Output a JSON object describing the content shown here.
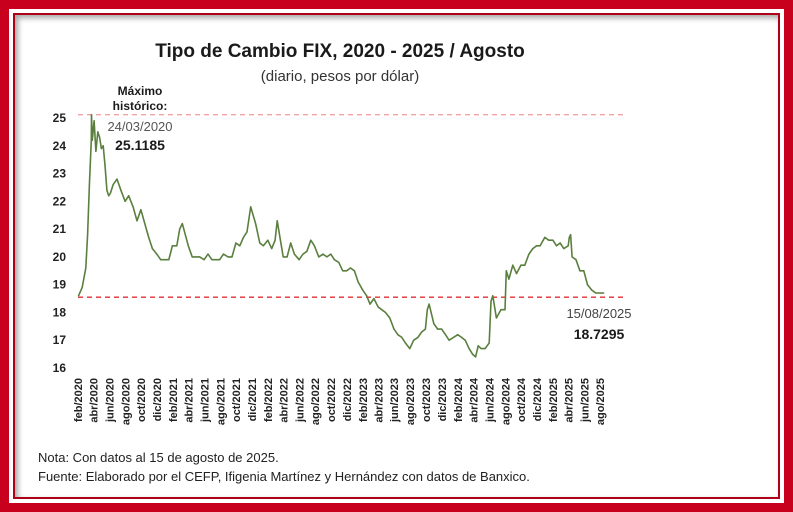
{
  "chart_data": {
    "type": "line",
    "title": "Tipo de Cambio FIX, 2020 - 2025 / Agosto",
    "subtitle": "(diario, pesos por dólar)",
    "ylim": [
      16,
      25
    ],
    "yticks": [
      16,
      17,
      18,
      19,
      20,
      21,
      22,
      23,
      24,
      25
    ],
    "xlim": [
      "2020-02-01",
      "2025-08-31"
    ],
    "xticks": [
      "feb/2020",
      "abr/2020",
      "jun/2020",
      "ago/2020",
      "oct/2020",
      "dic/2020",
      "feb/2021",
      "abr/2021",
      "jun/2021",
      "ago/2021",
      "oct/2021",
      "dic/2021",
      "feb/2022",
      "abr/2022",
      "jun/2022",
      "ago/2022",
      "oct/2022",
      "dic/2022",
      "feb/2023",
      "abr/2023",
      "jun/2023",
      "ago/2023",
      "oct/2023",
      "dic/2023",
      "feb/2024",
      "abr/2024",
      "jun/2024",
      "ago/2024",
      "oct/2024",
      "dic/2024",
      "feb/2025",
      "abr/2025",
      "jun/2025",
      "ago/2025"
    ],
    "line_color": "#5a7f3e",
    "grid": false,
    "series": [
      {
        "x": [
          "2020-02-03",
          "2020-02-17",
          "2020-03-02",
          "2020-03-09",
          "2020-03-16",
          "2020-03-23",
          "2020-03-24",
          "2020-03-27",
          "2020-04-03",
          "2020-04-10",
          "2020-04-17",
          "2020-04-24",
          "2020-05-01",
          "2020-05-08",
          "2020-05-15",
          "2020-05-22",
          "2020-05-29",
          "2020-06-05",
          "2020-06-15",
          "2020-06-30",
          "2020-07-15",
          "2020-07-31",
          "2020-08-14",
          "2020-08-31",
          "2020-09-15",
          "2020-09-30",
          "2020-10-15",
          "2020-10-30",
          "2020-11-13",
          "2020-11-30",
          "2020-12-15",
          "2020-12-31",
          "2021-01-15",
          "2021-01-29",
          "2021-02-15",
          "2021-02-26",
          "2021-03-08",
          "2021-03-31",
          "2021-04-15",
          "2021-04-30",
          "2021-05-14",
          "2021-05-31",
          "2021-06-15",
          "2021-06-30",
          "2021-07-15",
          "2021-07-30",
          "2021-08-13",
          "2021-08-31",
          "2021-09-15",
          "2021-09-30",
          "2021-10-15",
          "2021-10-29",
          "2021-11-12",
          "2021-11-26",
          "2021-12-15",
          "2021-12-31",
          "2022-01-14",
          "2022-01-31",
          "2022-02-15",
          "2022-02-28",
          "2022-03-08",
          "2022-03-31",
          "2022-04-15",
          "2022-04-29",
          "2022-05-13",
          "2022-05-31",
          "2022-06-15",
          "2022-06-30",
          "2022-07-15",
          "2022-07-29",
          "2022-08-15",
          "2022-08-31",
          "2022-09-15",
          "2022-09-30",
          "2022-10-14",
          "2022-10-31",
          "2022-11-15",
          "2022-11-30",
          "2022-12-15",
          "2022-12-30",
          "2023-01-13",
          "2023-01-31",
          "2023-02-15",
          "2023-02-28",
          "2023-03-15",
          "2023-03-31",
          "2023-04-14",
          "2023-04-28",
          "2023-05-15",
          "2023-05-31",
          "2023-06-15",
          "2023-06-30",
          "2023-07-14",
          "2023-07-31",
          "2023-08-15",
          "2023-08-31",
          "2023-09-15",
          "2023-09-29",
          "2023-10-06",
          "2023-10-13",
          "2023-10-31",
          "2023-11-15",
          "2023-11-30",
          "2023-12-15",
          "2023-12-29",
          "2024-01-15",
          "2024-01-31",
          "2024-02-15",
          "2024-02-29",
          "2024-03-15",
          "2024-03-28",
          "2024-04-09",
          "2024-04-19",
          "2024-04-30",
          "2024-05-15",
          "2024-05-31",
          "2024-06-07",
          "2024-06-14",
          "2024-06-28",
          "2024-07-15",
          "2024-07-31",
          "2024-08-05",
          "2024-08-15",
          "2024-08-30",
          "2024-09-13",
          "2024-09-30",
          "2024-10-15",
          "2024-10-31",
          "2024-11-15",
          "2024-11-29",
          "2024-12-13",
          "2024-12-31",
          "2025-01-15",
          "2025-01-31",
          "2025-02-14",
          "2025-02-28",
          "2025-03-14",
          "2025-03-31",
          "2025-04-04",
          "2025-04-09",
          "2025-04-15",
          "2025-04-30",
          "2025-05-15",
          "2025-05-30",
          "2025-06-13",
          "2025-06-30",
          "2025-07-15",
          "2025-07-31",
          "2025-08-08",
          "2025-08-15"
        ],
        "values": [
          18.6,
          18.9,
          19.6,
          20.8,
          22.6,
          24.2,
          25.1185,
          24.2,
          24.9,
          23.8,
          24.5,
          24.3,
          23.9,
          24.0,
          23.3,
          22.4,
          22.2,
          22.3,
          22.6,
          22.8,
          22.4,
          22.0,
          22.2,
          21.8,
          21.3,
          21.7,
          21.2,
          20.7,
          20.3,
          20.1,
          19.9,
          19.9,
          19.9,
          20.4,
          20.4,
          21.0,
          21.2,
          20.4,
          20.0,
          20.0,
          20.0,
          19.9,
          20.1,
          19.9,
          19.9,
          19.9,
          20.1,
          20.0,
          20.0,
          20.5,
          20.4,
          20.7,
          20.9,
          21.8,
          21.2,
          20.5,
          20.4,
          20.6,
          20.3,
          20.6,
          21.3,
          20.0,
          20.0,
          20.5,
          20.1,
          19.9,
          20.1,
          20.2,
          20.6,
          20.4,
          20.0,
          20.1,
          20.0,
          20.1,
          19.9,
          19.8,
          19.5,
          19.5,
          19.6,
          19.5,
          19.1,
          18.8,
          18.6,
          18.3,
          18.5,
          18.2,
          18.1,
          18.0,
          17.8,
          17.4,
          17.2,
          17.1,
          16.9,
          16.7,
          17.0,
          17.1,
          17.3,
          17.4,
          18.1,
          18.3,
          17.6,
          17.4,
          17.4,
          17.2,
          17.0,
          17.1,
          17.2,
          17.1,
          17.0,
          16.7,
          16.5,
          16.4,
          16.8,
          16.7,
          16.7,
          16.9,
          18.4,
          18.6,
          17.8,
          18.1,
          18.1,
          19.5,
          19.2,
          19.7,
          19.4,
          19.7,
          19.7,
          20.1,
          20.3,
          20.4,
          20.4,
          20.7,
          20.6,
          20.6,
          20.4,
          20.5,
          20.3,
          20.4,
          20.7,
          20.8,
          20.0,
          19.9,
          19.5,
          19.5,
          19.0,
          18.8,
          18.7,
          18.7,
          18.7,
          18.7
        ]
      }
    ],
    "reference_lines": [
      {
        "value": 25.1185,
        "style": "dashed",
        "color": "#f2a3a8"
      },
      {
        "value": 18.55,
        "style": "dashed",
        "color": "#e03030"
      }
    ],
    "annotations": {
      "max_label": "Máximo histórico:",
      "max_date": "24/03/2020",
      "max_value": "25.1185",
      "last_date": "15/08/2025",
      "last_value": "18.7295"
    },
    "notes": [
      "Nota: Con datos al 15 de agosto de 2025.",
      "Fuente:  Elaborado por el CEFP, Ifigenia Martínez y Hernández con datos de Banxico."
    ]
  }
}
